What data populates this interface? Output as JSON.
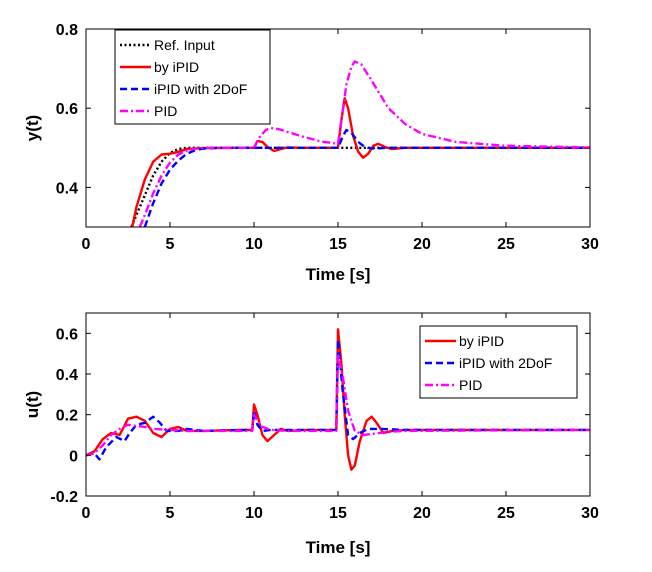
{
  "chart_data": [
    {
      "type": "line",
      "title": "",
      "xlabel": "Time [s]",
      "ylabel": "y(t)",
      "xlim": [
        0,
        30
      ],
      "ylim": [
        0.3,
        0.8
      ],
      "xticks": [
        0,
        5,
        10,
        15,
        20,
        25,
        30
      ],
      "yticks": [
        0.4,
        0.6,
        0.8
      ],
      "ytick_labels": [
        "0.4",
        "0.6",
        "0.8"
      ],
      "grid": false,
      "legend_position": "top-left",
      "series": [
        {
          "name": "Ref. Input",
          "color": "#000000",
          "style": "dotted",
          "points": [
            [
              2.7,
              0.3
            ],
            [
              3.0,
              0.33
            ],
            [
              3.5,
              0.38
            ],
            [
              4.0,
              0.43
            ],
            [
              4.5,
              0.465
            ],
            [
              5.0,
              0.487
            ],
            [
              5.5,
              0.497
            ],
            [
              6.0,
              0.5
            ],
            [
              30,
              0.5
            ]
          ]
        },
        {
          "name": "by iPID",
          "color": "#ff0000",
          "style": "solid",
          "points": [
            [
              2.75,
              0.3
            ],
            [
              3.0,
              0.35
            ],
            [
              3.5,
              0.42
            ],
            [
              4.0,
              0.465
            ],
            [
              4.5,
              0.483
            ],
            [
              5.0,
              0.485
            ],
            [
              5.5,
              0.49
            ],
            [
              6.0,
              0.497
            ],
            [
              7.0,
              0.499
            ],
            [
              9.0,
              0.5
            ],
            [
              10.0,
              0.5
            ],
            [
              10.2,
              0.517
            ],
            [
              10.5,
              0.515
            ],
            [
              10.8,
              0.502
            ],
            [
              11.2,
              0.492
            ],
            [
              11.6,
              0.497
            ],
            [
              12.0,
              0.501
            ],
            [
              13.0,
              0.5
            ],
            [
              15.0,
              0.5
            ],
            [
              15.2,
              0.57
            ],
            [
              15.4,
              0.625
            ],
            [
              15.6,
              0.6
            ],
            [
              15.9,
              0.53
            ],
            [
              16.2,
              0.49
            ],
            [
              16.5,
              0.475
            ],
            [
              16.8,
              0.485
            ],
            [
              17.1,
              0.505
            ],
            [
              17.4,
              0.51
            ],
            [
              17.8,
              0.502
            ],
            [
              18.2,
              0.497
            ],
            [
              19.0,
              0.5
            ],
            [
              30,
              0.5
            ]
          ]
        },
        {
          "name": "iPID with 2DoF",
          "color": "#0000ff",
          "style": "dashed",
          "points": [
            [
              3.5,
              0.3
            ],
            [
              4.0,
              0.36
            ],
            [
              4.5,
              0.41
            ],
            [
              5.0,
              0.445
            ],
            [
              5.5,
              0.468
            ],
            [
              6.0,
              0.485
            ],
            [
              6.5,
              0.494
            ],
            [
              7.0,
              0.498
            ],
            [
              8.0,
              0.5
            ],
            [
              15.0,
              0.5
            ],
            [
              15.3,
              0.53
            ],
            [
              15.5,
              0.545
            ],
            [
              15.8,
              0.538
            ],
            [
              16.2,
              0.515
            ],
            [
              16.6,
              0.502
            ],
            [
              17.0,
              0.498
            ],
            [
              18.0,
              0.5
            ],
            [
              30,
              0.5
            ]
          ]
        },
        {
          "name": "PID",
          "color": "#ff00ff",
          "style": "dashdot",
          "points": [
            [
              3.2,
              0.3
            ],
            [
              3.5,
              0.33
            ],
            [
              4.0,
              0.385
            ],
            [
              4.5,
              0.43
            ],
            [
              5.0,
              0.463
            ],
            [
              5.5,
              0.483
            ],
            [
              6.0,
              0.493
            ],
            [
              6.5,
              0.498
            ],
            [
              7.0,
              0.5
            ],
            [
              10.0,
              0.5
            ],
            [
              10.3,
              0.525
            ],
            [
              10.7,
              0.545
            ],
            [
              11.0,
              0.55
            ],
            [
              11.5,
              0.547
            ],
            [
              12.0,
              0.54
            ],
            [
              13.0,
              0.527
            ],
            [
              14.0,
              0.516
            ],
            [
              15.0,
              0.51
            ],
            [
              15.2,
              0.57
            ],
            [
              15.5,
              0.66
            ],
            [
              15.8,
              0.705
            ],
            [
              16.0,
              0.718
            ],
            [
              16.4,
              0.71
            ],
            [
              17.0,
              0.67
            ],
            [
              18.0,
              0.6
            ],
            [
              19.0,
              0.56
            ],
            [
              20.0,
              0.535
            ],
            [
              22.0,
              0.515
            ],
            [
              25.0,
              0.505
            ],
            [
              30,
              0.501
            ]
          ]
        }
      ]
    },
    {
      "type": "line",
      "title": "",
      "xlabel": "Time [s]",
      "ylabel": "u(t)",
      "xlim": [
        0,
        30
      ],
      "ylim": [
        -0.2,
        0.7
      ],
      "xticks": [
        0,
        5,
        10,
        15,
        20,
        25,
        30
      ],
      "yticks": [
        -0.2,
        0,
        0.2,
        0.4,
        0.6
      ],
      "ytick_labels": [
        "-0.2",
        "0",
        "0.2",
        "0.4",
        "0.6"
      ],
      "grid": false,
      "legend_position": "top-right",
      "series": [
        {
          "name": "by iPID",
          "color": "#ff0000",
          "style": "solid",
          "points": [
            [
              0,
              0
            ],
            [
              0.5,
              0.02
            ],
            [
              1.0,
              0.08
            ],
            [
              1.5,
              0.11
            ],
            [
              2.0,
              0.1
            ],
            [
              2.5,
              0.18
            ],
            [
              3.0,
              0.19
            ],
            [
              3.5,
              0.17
            ],
            [
              4.0,
              0.11
            ],
            [
              4.5,
              0.09
            ],
            [
              5.0,
              0.13
            ],
            [
              5.5,
              0.14
            ],
            [
              6.0,
              0.12
            ],
            [
              7.0,
              0.12
            ],
            [
              9.0,
              0.125
            ],
            [
              9.9,
              0.125
            ],
            [
              10.0,
              0.25
            ],
            [
              10.2,
              0.2
            ],
            [
              10.5,
              0.1
            ],
            [
              10.8,
              0.07
            ],
            [
              11.2,
              0.1
            ],
            [
              11.6,
              0.13
            ],
            [
              12.0,
              0.12
            ],
            [
              13.0,
              0.125
            ],
            [
              14.9,
              0.125
            ],
            [
              15.0,
              0.62
            ],
            [
              15.2,
              0.45
            ],
            [
              15.4,
              0.2
            ],
            [
              15.6,
              0.0
            ],
            [
              15.8,
              -0.07
            ],
            [
              16.0,
              -0.05
            ],
            [
              16.3,
              0.07
            ],
            [
              16.7,
              0.17
            ],
            [
              17.0,
              0.19
            ],
            [
              17.3,
              0.16
            ],
            [
              17.7,
              0.11
            ],
            [
              18.2,
              0.12
            ],
            [
              19.0,
              0.125
            ],
            [
              30,
              0.125
            ]
          ]
        },
        {
          "name": "iPID with 2DoF",
          "color": "#0000ff",
          "style": "dashed",
          "points": [
            [
              0,
              0
            ],
            [
              0.5,
              0.01
            ],
            [
              0.8,
              -0.02
            ],
            [
              1.2,
              0.04
            ],
            [
              1.8,
              0.09
            ],
            [
              2.3,
              0.07
            ],
            [
              2.6,
              0.11
            ],
            [
              3.0,
              0.15
            ],
            [
              3.5,
              0.16
            ],
            [
              4.0,
              0.19
            ],
            [
              4.4,
              0.16
            ],
            [
              4.8,
              0.12
            ],
            [
              5.5,
              0.12
            ],
            [
              6.0,
              0.13
            ],
            [
              7.0,
              0.12
            ],
            [
              9.9,
              0.125
            ],
            [
              10.0,
              0.22
            ],
            [
              10.2,
              0.15
            ],
            [
              10.5,
              0.12
            ],
            [
              11.0,
              0.125
            ],
            [
              14.9,
              0.125
            ],
            [
              15.0,
              0.57
            ],
            [
              15.3,
              0.3
            ],
            [
              15.6,
              0.1
            ],
            [
              15.9,
              0.08
            ],
            [
              16.3,
              0.11
            ],
            [
              16.8,
              0.13
            ],
            [
              17.5,
              0.13
            ],
            [
              19.0,
              0.125
            ],
            [
              30,
              0.125
            ]
          ]
        },
        {
          "name": "PID",
          "color": "#ff00ff",
          "style": "dashdot",
          "points": [
            [
              0,
              0
            ],
            [
              0.5,
              0.01
            ],
            [
              1.0,
              0.05
            ],
            [
              1.5,
              0.1
            ],
            [
              2.0,
              0.13
            ],
            [
              2.5,
              0.15
            ],
            [
              3.0,
              0.145
            ],
            [
              3.5,
              0.14
            ],
            [
              4.0,
              0.13
            ],
            [
              5.0,
              0.125
            ],
            [
              6.0,
              0.12
            ],
            [
              8.0,
              0.12
            ],
            [
              9.9,
              0.12
            ],
            [
              10.0,
              0.2
            ],
            [
              10.2,
              0.17
            ],
            [
              10.5,
              0.14
            ],
            [
              11.0,
              0.125
            ],
            [
              12.0,
              0.12
            ],
            [
              14.9,
              0.12
            ],
            [
              15.0,
              0.5
            ],
            [
              15.3,
              0.38
            ],
            [
              15.6,
              0.22
            ],
            [
              16.0,
              0.12
            ],
            [
              16.5,
              0.1
            ],
            [
              17.0,
              0.105
            ],
            [
              18.0,
              0.115
            ],
            [
              19.0,
              0.12
            ],
            [
              30,
              0.125
            ]
          ]
        }
      ]
    }
  ]
}
